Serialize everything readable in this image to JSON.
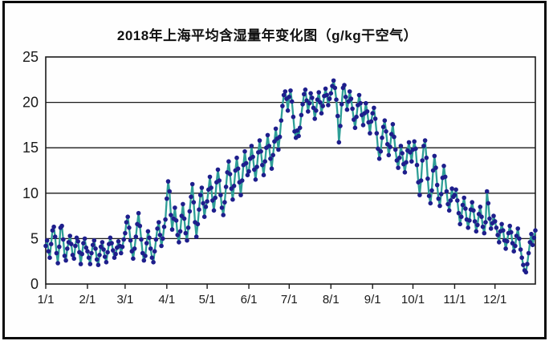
{
  "chart_data": {
    "type": "line",
    "title": "2018年上海平均含湿量年变化图（g/kg干空气）",
    "x_start": "1/1",
    "x_interval": "daily",
    "x_tick_labels": [
      "1/1",
      "2/1",
      "3/1",
      "4/1",
      "5/1",
      "6/1",
      "7/1",
      "8/1",
      "9/1",
      "10/1",
      "11/1",
      "12/1"
    ],
    "month_start_day_index": [
      0,
      31,
      59,
      90,
      120,
      151,
      181,
      212,
      243,
      273,
      304,
      334
    ],
    "y_ticks": [
      0,
      5,
      10,
      15,
      20,
      25
    ],
    "ylim": [
      0,
      25
    ],
    "grid": "horizontal",
    "legend": "none",
    "line_color": "#2e9e96",
    "marker_color": "#1e1e8c",
    "axis_color": "#1a1a1a",
    "values": [
      4.2,
      4.8,
      3.6,
      2.9,
      4.4,
      5.9,
      6.3,
      5.2,
      3.4,
      2.3,
      4.1,
      6.2,
      6.4,
      4.9,
      3.1,
      2.6,
      3.9,
      4.6,
      5.3,
      4.4,
      3.2,
      2.8,
      4.2,
      5.1,
      4.7,
      3.5,
      2.2,
      3.3,
      4.5,
      5.0,
      4.0,
      3.6,
      2.9,
      2.2,
      3.4,
      4.3,
      4.8,
      3.9,
      2.7,
      2.1,
      3.2,
      4.1,
      4.6,
      3.8,
      3.0,
      2.4,
      3.5,
      4.4,
      5.1,
      4.5,
      3.7,
      2.9,
      3.3,
      4.0,
      4.7,
      4.2,
      3.4,
      4.1,
      4.9,
      5.6,
      6.8,
      7.4,
      6.2,
      4.8,
      3.6,
      2.8,
      3.9,
      5.2,
      6.6,
      7.8,
      6.4,
      4.9,
      3.4,
      2.6,
      3.1,
      4.5,
      5.8,
      5.1,
      3.9,
      2.9,
      2.4,
      3.6,
      4.9,
      6.1,
      6.8,
      5.4,
      4.2,
      5.0,
      6.3,
      7.1,
      9.4,
      11.3,
      10.2,
      7.6,
      6.0,
      7.2,
      8.4,
      7.0,
      5.4,
      4.6,
      5.8,
      7.5,
      8.8,
      7.2,
      5.6,
      4.8,
      6.2,
      8.0,
      9.6,
      11.0,
      9.0,
      6.8,
      5.2,
      6.6,
      8.2,
      9.8,
      10.6,
      8.9,
      7.4,
      8.5,
      9.1,
      10.4,
      11.8,
      10.6,
      9.2,
      8.1,
      9.5,
      11.2,
      12.6,
      11.4,
      9.8,
      8.4,
      7.6,
      9.0,
      10.7,
      12.3,
      13.5,
      12.1,
      10.5,
      9.3,
      10.8,
      12.5,
      13.9,
      12.7,
      11.2,
      9.8,
      11.4,
      13.1,
      14.6,
      13.3,
      12.0,
      12.4,
      13.8,
      15.2,
      14.0,
      12.6,
      11.5,
      12.9,
      14.5,
      15.8,
      14.6,
      13.1,
      12.0,
      13.5,
      15.0,
      16.4,
      15.2,
      13.8,
      12.7,
      14.2,
      15.7,
      17.1,
      16.0,
      14.8,
      16.2,
      18.0,
      19.6,
      20.8,
      21.2,
      20.4,
      19.1,
      20.6,
      21.3,
      20.1,
      18.4,
      16.8,
      16.1,
      16.9,
      16.3,
      17.2,
      18.6,
      19.8,
      20.9,
      21.4,
      20.2,
      19.0,
      19.9,
      21.0,
      20.5,
      19.4,
      18.2,
      19.1,
      20.3,
      21.1,
      20.0,
      18.8,
      19.6,
      20.7,
      21.5,
      20.8,
      19.7,
      20.4,
      21.0,
      21.8,
      22.4,
      21.6,
      20.3,
      18.5,
      15.6,
      17.4,
      19.8,
      21.6,
      21.9,
      20.6,
      19.2,
      20.1,
      21.2,
      20.4,
      19.3,
      18.1,
      17.2,
      18.4,
      19.7,
      20.8,
      19.9,
      18.6,
      17.5,
      18.8,
      19.9,
      19.0,
      17.8,
      16.6,
      17.9,
      18.8,
      19.4,
      18.2,
      16.6,
      14.9,
      13.8,
      14.6,
      16.1,
      17.3,
      18.0,
      16.8,
      15.4,
      14.2,
      15.1,
      16.5,
      17.6,
      16.2,
      14.8,
      13.6,
      12.8,
      13.9,
      15.2,
      14.4,
      13.2,
      12.3,
      13.4,
      14.7,
      15.6,
      14.5,
      13.5,
      14.8,
      15.7,
      14.9,
      13.1,
      11.2,
      9.8,
      11.4,
      13.6,
      15.2,
      15.8,
      13.9,
      11.6,
      9.7,
      8.9,
      10.3,
      12.5,
      14.1,
      12.8,
      10.9,
      9.4,
      8.6,
      9.9,
      11.7,
      13.0,
      11.8,
      10.2,
      8.8,
      8.1,
      9.2,
      10.5,
      9.6,
      9.8,
      10.4,
      9.2,
      7.8,
      6.6,
      7.4,
      8.7,
      9.5,
      8.3,
      7.1,
      6.2,
      7.0,
      8.2,
      9.0,
      8.1,
      6.9,
      5.8,
      6.5,
      7.7,
      8.5,
      7.4,
      6.3,
      5.6,
      6.8,
      10.2,
      8.9,
      7.2,
      6.1,
      6.7,
      7.5,
      6.9,
      6.2,
      5.4,
      4.6,
      5.8,
      6.6,
      5.9,
      4.8,
      3.9,
      4.7,
      5.6,
      6.4,
      5.7,
      4.5,
      3.6,
      4.2,
      5.3,
      6.1,
      5.0,
      3.8,
      2.9,
      2.1,
      1.5,
      1.3,
      2.2,
      3.4,
      4.6,
      5.5,
      4.3,
      5.1,
      5.9
    ]
  }
}
